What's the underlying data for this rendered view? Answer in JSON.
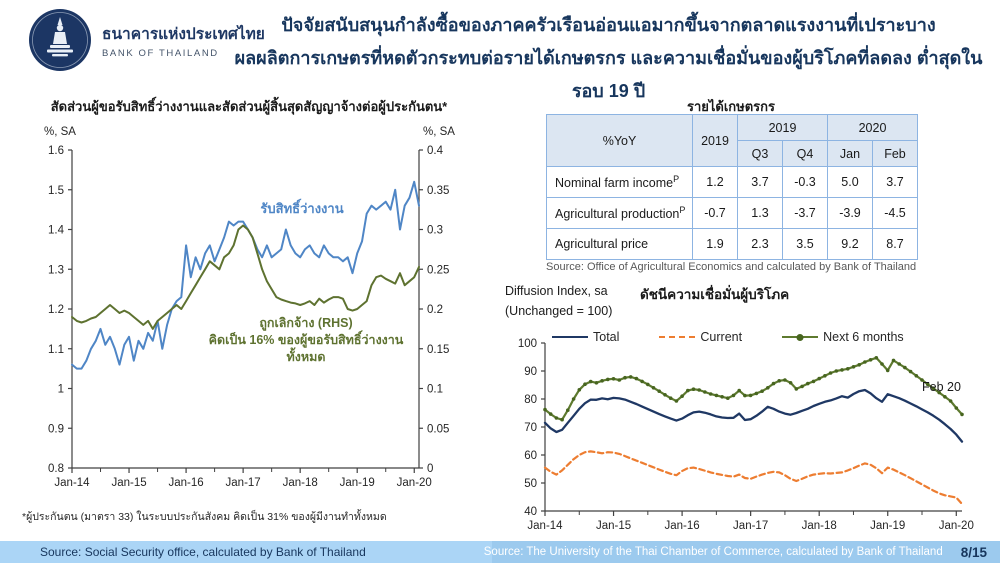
{
  "header": {
    "bank_name_th": "ธนาคารแห่งประเทศไทย",
    "bank_name_en": "BANK OF THAILAND",
    "title_line1": "ปัจจัยสนับสนุนกำลังซื้อของภาคครัวเรือนอ่อนแอมากขึ้นจากตลาดแรงงานที่เปราะบาง",
    "title_line2": "ผลผลิตการเกษตรที่หดตัวกระทบต่อรายได้เกษตรกร และความเชื่อมั่นของผู้บริโภคที่ลดลง ต่ำสุดในรอบ 19 ปี"
  },
  "left_chart": {
    "title": "สัดส่วนผู้ขอรับสิทธิ์ว่างงานและสัดส่วนผู้สิ้นสุดสัญญาจ้างต่อผู้ประกันตน*",
    "label_blue": "รับสิทธิ์ว่างงาน",
    "label_green_1": "ถูกเลิกจ้าง (RHS)",
    "label_green_2": "คิดเป็น 16% ของผู้ขอรับสิทธิ์ว่างงานทั้งหมด",
    "footnote": "*ผู้ประกันตน (มาตรา 33) ในระบบประกันสังคม คิดเป็น 31% ของผู้มีงานทำทั้งหมด"
  },
  "farm_table": {
    "title": "รายได้เกษตรกร",
    "header": {
      "yoy": "%YoY",
      "annual": "2019",
      "group_2019": "2019",
      "group_2020": "2020",
      "q3": "Q3",
      "q4": "Q4",
      "jan": "Jan",
      "feb": "Feb"
    },
    "rows": [
      {
        "label": "Nominal farm income",
        "sup": "P",
        "values": [
          "1.2",
          "3.7",
          "-0.3",
          "5.0",
          "3.7"
        ]
      },
      {
        "label": "Agricultural production",
        "sup": "P",
        "values": [
          "-0.7",
          "1.3",
          "-3.7",
          "-3.9",
          "-4.5"
        ]
      },
      {
        "label": "Agricultural price",
        "sup": "",
        "values": [
          "1.9",
          "2.3",
          "3.5",
          "9.2",
          "8.7"
        ]
      }
    ],
    "source": "Source: Office of Agricultural Economics and calculated by Bank of Thailand"
  },
  "confidence_chart": {
    "unit_line1": "Diffusion Index, sa",
    "unit_line2": "(Unchanged = 100)",
    "title": "ดัชนีความเชื่อมั่นผู้บริโภค",
    "annotation": "Feb 20",
    "legend": [
      "Total",
      "Current",
      "Next 6 months"
    ]
  },
  "footer": {
    "source_left": "Source: Social Security office, calculated by Bank of Thailand",
    "source_right": "Source: The University of the Thai Chamber of Commerce, calculated by Bank of Thailand",
    "page": "8/15"
  },
  "colors": {
    "title_navy": "#17365d",
    "blue_line": "#4f86c6",
    "olive_line": "#5e7230",
    "total_line": "#1f3864",
    "current_line": "#ed7d31",
    "next6_line": "#5e7a2f",
    "footer_bar": "#abd5f6",
    "table_border": "#8db4e2",
    "table_header_bg": "#dce6f2"
  },
  "chart_data": [
    {
      "type": "line",
      "title": "สัดส่วนผู้ขอรับสิทธิ์ว่างงานและสัดส่วนผู้สิ้นสุดสัญญาจ้างต่อผู้ประกันตน*",
      "x_monthly_range": "Jan-14 to Feb-20",
      "x_tick_labels": [
        "Jan-14",
        "Jan-15",
        "Jan-16",
        "Jan-17",
        "Jan-18",
        "Jan-19",
        "Jan-20"
      ],
      "x_tick_indices": [
        0,
        12,
        24,
        36,
        48,
        60,
        72
      ],
      "x_minor_indices": [
        6,
        18,
        30,
        42,
        54,
        66
      ],
      "y_left": {
        "label": "%, SA",
        "min": 0.8,
        "max": 1.6,
        "ticks": [
          "1.6",
          "1.5",
          "1.4",
          "1.3",
          "1.2",
          "1.1",
          "1",
          "0.9",
          "0.8"
        ]
      },
      "y_right": {
        "label": "%, SA",
        "min": 0,
        "max": 0.4,
        "ticks": [
          "0.4",
          "0.35",
          "0.3",
          "0.25",
          "0.2",
          "0.15",
          "0.1",
          "0.05",
          "0"
        ]
      },
      "grid": false,
      "series": [
        {
          "id": "benefit-claims",
          "name": "รับสิทธิ์ว่างงาน",
          "axis": "left",
          "color": "#4f86c6",
          "width": 2,
          "values": [
            1.06,
            1.05,
            1.05,
            1.07,
            1.1,
            1.12,
            1.15,
            1.11,
            1.13,
            1.1,
            1.06,
            1.11,
            1.13,
            1.07,
            1.12,
            1.1,
            1.14,
            1.12,
            1.17,
            1.1,
            1.16,
            1.2,
            1.22,
            1.23,
            1.36,
            1.28,
            1.33,
            1.3,
            1.34,
            1.36,
            1.32,
            1.35,
            1.38,
            1.42,
            1.41,
            1.42,
            1.42,
            1.4,
            1.38,
            1.35,
            1.33,
            1.36,
            1.33,
            1.34,
            1.35,
            1.4,
            1.36,
            1.34,
            1.33,
            1.35,
            1.36,
            1.34,
            1.33,
            1.36,
            1.34,
            1.33,
            1.33,
            1.32,
            1.33,
            1.29,
            1.34,
            1.37,
            1.44,
            1.46,
            1.45,
            1.46,
            1.47,
            1.45,
            1.5,
            1.4,
            1.46,
            1.48,
            1.52,
            1.46
          ]
        },
        {
          "id": "laid-off",
          "name": "ถูกเลิกจ้าง (RHS)",
          "axis": "right",
          "color": "#5e7230",
          "width": 2,
          "values": [
            0.19,
            0.185,
            0.183,
            0.185,
            0.188,
            0.19,
            0.195,
            0.2,
            0.205,
            0.2,
            0.195,
            0.198,
            0.195,
            0.19,
            0.185,
            0.18,
            0.185,
            0.175,
            0.185,
            0.19,
            0.195,
            0.2,
            0.205,
            0.2,
            0.21,
            0.22,
            0.23,
            0.24,
            0.25,
            0.26,
            0.255,
            0.25,
            0.265,
            0.27,
            0.28,
            0.3,
            0.305,
            0.3,
            0.29,
            0.27,
            0.25,
            0.235,
            0.225,
            0.215,
            0.212,
            0.21,
            0.208,
            0.207,
            0.205,
            0.207,
            0.21,
            0.205,
            0.213,
            0.208,
            0.212,
            0.215,
            0.215,
            0.213,
            0.2,
            0.198,
            0.2,
            0.205,
            0.21,
            0.23,
            0.24,
            0.242,
            0.238,
            0.235,
            0.232,
            0.245,
            0.23,
            0.235,
            0.24,
            0.253
          ]
        }
      ]
    },
    {
      "type": "line",
      "title": "ดัชนีความเชื่อมั่นผู้บริโภค",
      "x_monthly_range": "Jan-14 to Feb-20",
      "x_tick_labels": [
        "Jan-14",
        "Jan-15",
        "Jan-16",
        "Jan-17",
        "Jan-18",
        "Jan-19",
        "Jan-20"
      ],
      "x_tick_indices": [
        0,
        12,
        24,
        36,
        48,
        60,
        72
      ],
      "x_minor_indices": [
        6,
        18,
        30,
        42,
        54,
        66
      ],
      "y_left": {
        "label": "Diffusion Index, sa (Unchanged = 100)",
        "min": 40,
        "max": 100,
        "ticks": [
          "100",
          "90",
          "80",
          "70",
          "60",
          "50",
          "40"
        ]
      },
      "grid": false,
      "annotation": "Feb 20",
      "series": [
        {
          "id": "total",
          "name": "Total",
          "axis": "left",
          "color": "#1f3864",
          "width": 2.3,
          "values": [
            71.5,
            69.5,
            68.2,
            69.0,
            71.5,
            74.0,
            76.5,
            78.5,
            79.8,
            79.7,
            80.2,
            79.9,
            80.4,
            80.2,
            79.8,
            79.0,
            78.2,
            77.3,
            76.4,
            75.5,
            74.6,
            73.8,
            73.0,
            72.3,
            73.0,
            74.2,
            75.2,
            75.5,
            75.1,
            74.5,
            73.8,
            73.4,
            73.2,
            73.3,
            74.8,
            72.5,
            72.8,
            74.0,
            75.5,
            77.2,
            76.5,
            75.5,
            74.8,
            74.4,
            75.0,
            75.8,
            76.5,
            77.5,
            78.3,
            79.0,
            79.5,
            80.2,
            81.0,
            80.5,
            81.8,
            82.8,
            83.2,
            82.0,
            80.3,
            79.0,
            81.7,
            81.0,
            80.3,
            79.4,
            78.4,
            77.4,
            76.3,
            75.2,
            74.0,
            72.6,
            71.0,
            69.3,
            67.3,
            64.8
          ]
        },
        {
          "id": "current",
          "name": "Current",
          "axis": "left",
          "color": "#ed7d31",
          "width": 2.2,
          "dash": true,
          "values": [
            55.5,
            54.0,
            53.0,
            54.5,
            56.5,
            58.5,
            60.0,
            61.0,
            61.3,
            61.0,
            60.6,
            61.0,
            60.9,
            60.4,
            59.6,
            58.8,
            58.0,
            57.2,
            56.4,
            55.6,
            54.8,
            54.0,
            53.3,
            52.8,
            54.3,
            55.3,
            55.5,
            55.0,
            54.4,
            53.8,
            53.3,
            52.9,
            52.5,
            52.3,
            53.0,
            51.8,
            51.5,
            52.3,
            53.0,
            53.6,
            54.0,
            53.8,
            52.8,
            51.5,
            50.7,
            51.5,
            52.4,
            53.0,
            53.3,
            53.5,
            53.4,
            53.6,
            53.8,
            54.5,
            55.3,
            56.2,
            57.0,
            56.5,
            55.3,
            53.5,
            55.5,
            54.8,
            53.8,
            52.8,
            51.7,
            50.6,
            49.5,
            48.4,
            47.3,
            46.3,
            45.6,
            45.2,
            44.8,
            42.5
          ]
        },
        {
          "id": "next-6-months",
          "name": "Next 6 months",
          "axis": "left",
          "color": "#5e7a2f",
          "width": 2.2,
          "markers": true,
          "marker_color": "#47651f",
          "values": [
            76.2,
            74.6,
            73.2,
            72.6,
            76.0,
            80.0,
            83.3,
            85.3,
            86.2,
            85.8,
            86.5,
            87.0,
            87.2,
            86.8,
            87.6,
            87.9,
            87.3,
            86.3,
            85.2,
            84.0,
            82.8,
            81.5,
            80.3,
            79.3,
            81.0,
            83.0,
            83.5,
            83.2,
            82.5,
            81.8,
            81.3,
            80.8,
            80.3,
            81.3,
            83.0,
            81.2,
            81.3,
            82.0,
            82.8,
            84.0,
            85.5,
            86.5,
            86.8,
            85.8,
            83.6,
            84.5,
            85.5,
            86.3,
            87.3,
            88.3,
            89.3,
            90.0,
            90.4,
            90.8,
            91.5,
            92.2,
            93.2,
            94.0,
            94.7,
            92.5,
            90.2,
            93.8,
            92.5,
            91.2,
            89.8,
            88.3,
            86.8,
            85.3,
            83.8,
            82.3,
            80.8,
            79.3,
            76.8,
            74.5
          ]
        }
      ]
    },
    {
      "type": "table",
      "title": "รายได้เกษตรกร",
      "columns": [
        "%YoY",
        "2019",
        "2019 Q3",
        "2019 Q4",
        "2020 Jan",
        "2020 Feb"
      ],
      "rows": [
        [
          "Nominal farm income (P)",
          1.2,
          3.7,
          -0.3,
          5.0,
          3.7
        ],
        [
          "Agricultural production (P)",
          -0.7,
          1.3,
          -3.7,
          -3.9,
          -4.5
        ],
        [
          "Agricultural price",
          1.9,
          2.3,
          3.5,
          9.2,
          8.7
        ]
      ]
    }
  ]
}
